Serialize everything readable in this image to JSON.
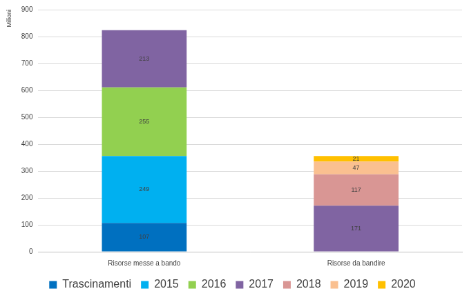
{
  "chart_data": {
    "type": "bar",
    "y_label": "Milioni",
    "categories": [
      "Risorse messe a bando",
      "Risorse da bandire"
    ],
    "series": [
      {
        "name": "Trascinamenti",
        "color": "#0070c0",
        "values": [
          107,
          null
        ]
      },
      {
        "name": "2015",
        "color": "#00b0f0",
        "values": [
          249,
          null
        ]
      },
      {
        "name": "2016",
        "color": "#92d050",
        "values": [
          255,
          null
        ]
      },
      {
        "name": "2017",
        "color": "#8064a2",
        "values": [
          213,
          171
        ]
      },
      {
        "name": "2018",
        "color": "#d99694",
        "values": [
          null,
          117
        ]
      },
      {
        "name": "2019",
        "color": "#fac090",
        "values": [
          null,
          47
        ]
      },
      {
        "name": "2020",
        "color": "#ffc000",
        "values": [
          null,
          21
        ]
      }
    ],
    "ylim": [
      0,
      900
    ],
    "yticks": [
      0,
      100,
      200,
      300,
      400,
      500,
      600,
      700,
      800,
      900
    ],
    "stacked": true,
    "grid": true,
    "legend": "bottom",
    "data_labels": true
  }
}
